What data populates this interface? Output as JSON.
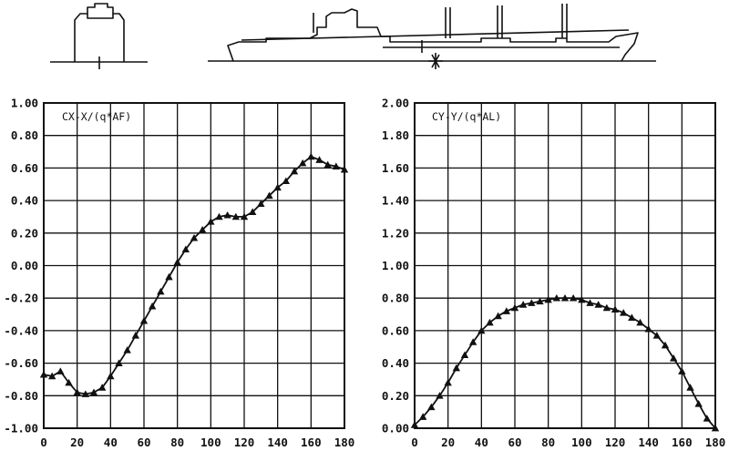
{
  "chart_data": [
    {
      "type": "line",
      "title": "CX-X/(q*AF)",
      "xlim": [
        0,
        180
      ],
      "ylim": [
        -1.0,
        1.0
      ],
      "x_ticks": [
        "0",
        "20",
        "40",
        "60",
        "80",
        "100",
        "120",
        "140",
        "160",
        "180"
      ],
      "y_ticks": [
        "-1.00",
        "-0.80",
        "-0.60",
        "-0.40",
        "-0.20",
        "0.00",
        "0.20",
        "0.40",
        "0.60",
        "0.80",
        "1.00"
      ],
      "grid": true,
      "marker": "triangle",
      "x": [
        0,
        5,
        10,
        15,
        20,
        25,
        30,
        35,
        40,
        45,
        50,
        55,
        60,
        65,
        70,
        75,
        80,
        85,
        90,
        95,
        100,
        105,
        110,
        115,
        120,
        125,
        130,
        135,
        140,
        145,
        150,
        155,
        160,
        165,
        170,
        175,
        180
      ],
      "y": [
        -0.67,
        -0.68,
        -0.65,
        -0.72,
        -0.78,
        -0.79,
        -0.78,
        -0.75,
        -0.68,
        -0.6,
        -0.52,
        -0.43,
        -0.34,
        -0.25,
        -0.16,
        -0.07,
        0.02,
        0.1,
        0.17,
        0.22,
        0.27,
        0.3,
        0.31,
        0.3,
        0.3,
        0.33,
        0.38,
        0.43,
        0.48,
        0.52,
        0.58,
        0.63,
        0.67,
        0.65,
        0.62,
        0.61,
        0.59
      ]
    },
    {
      "type": "line",
      "title": "CY-Y/(q*AL)",
      "xlim": [
        0,
        180
      ],
      "ylim": [
        0.0,
        2.0
      ],
      "x_ticks": [
        "0",
        "20",
        "40",
        "60",
        "80",
        "100",
        "120",
        "140",
        "160",
        "180"
      ],
      "y_ticks": [
        "0.00",
        "0.20",
        "0.40",
        "0.60",
        "0.80",
        "1.00",
        "1.20",
        "1.40",
        "1.60",
        "1.80",
        "2.00"
      ],
      "grid": true,
      "marker": "triangle",
      "x": [
        0,
        5,
        10,
        15,
        20,
        25,
        30,
        35,
        40,
        45,
        50,
        55,
        60,
        65,
        70,
        75,
        80,
        85,
        90,
        95,
        100,
        105,
        110,
        115,
        120,
        125,
        130,
        135,
        140,
        145,
        150,
        155,
        160,
        165,
        170,
        175,
        180
      ],
      "y": [
        0.02,
        0.07,
        0.13,
        0.2,
        0.28,
        0.37,
        0.45,
        0.53,
        0.6,
        0.65,
        0.69,
        0.72,
        0.74,
        0.76,
        0.77,
        0.78,
        0.79,
        0.8,
        0.8,
        0.8,
        0.79,
        0.77,
        0.76,
        0.74,
        0.73,
        0.71,
        0.68,
        0.65,
        0.61,
        0.57,
        0.51,
        0.43,
        0.35,
        0.25,
        0.15,
        0.06,
        0.0
      ]
    }
  ]
}
